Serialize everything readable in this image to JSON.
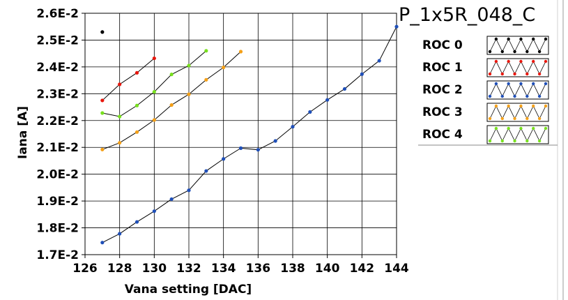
{
  "chart_data": {
    "type": "line",
    "title": "P_1x5R_048_C",
    "xlabel": "Vana setting [DAC]",
    "ylabel": "Iana [A]",
    "xlim": [
      126,
      144
    ],
    "ylim": [
      0.017,
      0.026
    ],
    "xticks": [
      "126",
      "128",
      "130",
      "132",
      "134",
      "136",
      "138",
      "140",
      "142",
      "144"
    ],
    "yticks": [
      "1.7E-2",
      "1.8E-2",
      "1.9E-2",
      "2.0E-2",
      "2.1E-2",
      "2.2E-2",
      "2.3E-2",
      "2.4E-2",
      "2.5E-2",
      "2.6E-2"
    ],
    "grid": true,
    "legend_placement": "right",
    "series": [
      {
        "name": "ROC 0",
        "color": "#000000",
        "x": [
          127
        ],
        "y": [
          0.0253
        ]
      },
      {
        "name": "ROC 1",
        "color": "#e8160c",
        "x": [
          127,
          128,
          129,
          130
        ],
        "y": [
          0.02275,
          0.02335,
          0.02378,
          0.02432
        ]
      },
      {
        "name": "ROC 2",
        "color": "#1f4fb8",
        "x": [
          127,
          128,
          129,
          130,
          131,
          132,
          133,
          134,
          135,
          136,
          137,
          138,
          139,
          140,
          141,
          142,
          143,
          144
        ],
        "y": [
          0.01745,
          0.01778,
          0.01822,
          0.01862,
          0.01907,
          0.0194,
          0.02012,
          0.02057,
          0.02097,
          0.02091,
          0.02124,
          0.02177,
          0.02232,
          0.02277,
          0.02318,
          0.02373,
          0.02423,
          0.0255
        ]
      },
      {
        "name": "ROC 3",
        "color": "#f4a018",
        "x": [
          127,
          128,
          129,
          130,
          131,
          132,
          133,
          134,
          135
        ],
        "y": [
          0.02092,
          0.02117,
          0.02157,
          0.02202,
          0.02258,
          0.02298,
          0.02352,
          0.02398,
          0.02457
        ]
      },
      {
        "name": "ROC 4",
        "color": "#78e01e",
        "x": [
          127,
          128,
          129,
          130,
          131,
          132,
          133
        ],
        "y": [
          0.02228,
          0.02215,
          0.02256,
          0.02307,
          0.02372,
          0.02405,
          0.0246
        ]
      }
    ]
  }
}
